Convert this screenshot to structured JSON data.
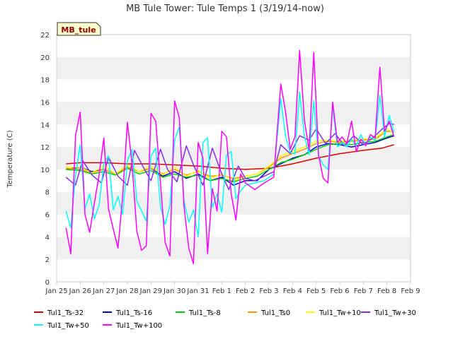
{
  "chart_data": {
    "type": "line",
    "title": "MB Tule Tower: Tule Temps 1 (3/19/14-now)",
    "xlabel": "",
    "ylabel": "Temperature (C)",
    "xlim": [
      0,
      15
    ],
    "ylim": [
      0,
      22
    ],
    "yticks": [
      0,
      2,
      4,
      6,
      8,
      10,
      12,
      14,
      16,
      18,
      20,
      22
    ],
    "xtick_labels": [
      "Jan 25",
      "Jan 26",
      "Jan 27",
      "Jan 28",
      "Jan 29",
      "Jan 30",
      "Jan 31",
      "Feb 1",
      "Feb 2",
      "Feb 3",
      "Feb 4",
      "Feb 5",
      "Feb 6",
      "Feb 7",
      "Feb 8",
      "Feb 9"
    ],
    "x_unit": "days since Jan 25",
    "grid": "horizontal bands",
    "badge": "MB_tule",
    "legend_position": "bottom",
    "series": [
      {
        "name": "Tul1_Ts-32",
        "color": "#dd0000",
        "x": [
          0.4,
          1,
          2,
          3,
          4,
          5,
          6,
          7,
          8,
          9,
          10,
          11,
          12,
          13,
          13.8,
          14.3
        ],
        "y": [
          10.5,
          10.6,
          10.6,
          10.5,
          10.5,
          10.4,
          10.3,
          10.1,
          10.0,
          10.1,
          10.5,
          11.0,
          11.4,
          11.7,
          11.9,
          12.2
        ]
      },
      {
        "name": "Tul1_Ts-16",
        "color": "#0000cc",
        "x": [
          0.4,
          1,
          1.5,
          2,
          2.5,
          3,
          3.5,
          4,
          4.5,
          5,
          5.5,
          6,
          6.5,
          7,
          7.5,
          8,
          8.5,
          9,
          9.5,
          10,
          10.5,
          11,
          11.5,
          12,
          12.5,
          13,
          13.5,
          14,
          14.3
        ],
        "y": [
          10.0,
          10.2,
          9.8,
          10.0,
          9.6,
          10.2,
          9.8,
          10.1,
          9.4,
          9.8,
          9.2,
          9.6,
          9.0,
          9.3,
          8.6,
          9.0,
          9.0,
          10.0,
          10.5,
          11.0,
          11.3,
          12.0,
          12.3,
          12.2,
          12.0,
          12.2,
          12.4,
          12.8,
          13.0
        ]
      },
      {
        "name": "Tul1_Ts-8",
        "color": "#00cc00",
        "x": [
          0.4,
          1,
          1.5,
          2,
          2.5,
          3,
          3.5,
          4,
          4.5,
          5,
          5.5,
          6,
          6.5,
          7,
          7.5,
          8,
          8.5,
          9,
          9.5,
          10,
          10.5,
          11,
          11.5,
          12,
          12.5,
          13,
          13.5,
          14,
          14.3
        ],
        "y": [
          10.0,
          9.9,
          9.6,
          9.8,
          9.5,
          10.1,
          9.6,
          9.9,
          9.3,
          9.6,
          9.3,
          9.5,
          9.0,
          9.2,
          8.9,
          9.2,
          9.4,
          10.0,
          10.6,
          10.9,
          11.3,
          11.8,
          12.2,
          12.3,
          12.2,
          12.4,
          12.5,
          12.9,
          13.1
        ]
      },
      {
        "name": "Tul1_Ts0",
        "color": "#ff9900",
        "x": [
          0.4,
          1,
          1.5,
          2,
          2.5,
          3,
          3.5,
          4,
          4.5,
          5,
          5.5,
          6,
          6.5,
          7,
          7.5,
          8,
          8.5,
          9,
          9.5,
          10,
          10.5,
          11,
          11.5,
          12,
          12.5,
          13,
          13.5,
          14,
          14.3
        ],
        "y": [
          10.1,
          10.0,
          9.7,
          10.0,
          9.6,
          10.2,
          9.8,
          10.1,
          9.6,
          10.0,
          9.5,
          9.8,
          9.4,
          9.5,
          9.2,
          9.4,
          9.6,
          10.2,
          11.0,
          11.4,
          11.8,
          12.3,
          12.5,
          12.4,
          12.5,
          12.6,
          12.7,
          13.4,
          13.3
        ]
      },
      {
        "name": "Tul1_Tw+10",
        "color": "#ffff00",
        "x": [
          0.4,
          1,
          1.5,
          2,
          2.5,
          3,
          3.5,
          4,
          4.5,
          5,
          5.5,
          6,
          6.5,
          7,
          7.5,
          8,
          8.5,
          9,
          9.5,
          10,
          10.5,
          11,
          11.5,
          12,
          12.5,
          13,
          13.5,
          14,
          14.3
        ],
        "y": [
          10.2,
          10.2,
          9.7,
          10.3,
          9.6,
          10.4,
          9.8,
          10.3,
          9.5,
          10.2,
          9.4,
          9.9,
          9.2,
          9.6,
          9.0,
          9.4,
          9.6,
          10.3,
          11.2,
          11.6,
          12.0,
          12.5,
          12.6,
          12.5,
          12.6,
          12.7,
          12.8,
          13.6,
          13.2
        ]
      },
      {
        "name": "Tul1_Tw+30",
        "color": "#8a2be2",
        "x": [
          0.4,
          0.8,
          1.1,
          1.5,
          1.9,
          2.2,
          2.6,
          3.0,
          3.3,
          3.7,
          4.0,
          4.4,
          4.7,
          5.1,
          5.5,
          5.8,
          6.2,
          6.6,
          7.0,
          7.3,
          7.7,
          8.0,
          8.4,
          8.8,
          9.2,
          9.5,
          9.9,
          10.3,
          10.7,
          11.0,
          11.4,
          11.8,
          12.2,
          12.6,
          13.0,
          13.4,
          13.8,
          14.1,
          14.3
        ],
        "y": [
          9.3,
          8.6,
          10.8,
          9.5,
          8.8,
          11.1,
          9.4,
          8.6,
          11.7,
          10.1,
          9.0,
          11.8,
          10.0,
          8.9,
          12.1,
          10.4,
          8.6,
          11.9,
          9.6,
          8.2,
          10.3,
          9.2,
          9.0,
          9.4,
          9.8,
          12.2,
          11.4,
          13.0,
          12.6,
          13.6,
          12.3,
          13.2,
          12.1,
          13.0,
          12.2,
          12.8,
          13.6,
          14.1,
          14.0
        ]
      },
      {
        "name": "Tul1_Tw+50",
        "color": "#00ffff",
        "x": [
          0.4,
          0.6,
          0.8,
          1.0,
          1.2,
          1.4,
          1.6,
          1.8,
          2.0,
          2.2,
          2.4,
          2.6,
          2.8,
          3.0,
          3.2,
          3.4,
          3.6,
          3.8,
          4.0,
          4.2,
          4.4,
          4.6,
          4.8,
          5.0,
          5.2,
          5.4,
          5.6,
          5.8,
          6.0,
          6.2,
          6.4,
          6.6,
          6.8,
          7.0,
          7.2,
          7.4,
          7.6,
          7.8,
          8.0,
          8.4,
          8.8,
          9.2,
          9.5,
          9.7,
          9.9,
          10.1,
          10.3,
          10.5,
          10.7,
          10.9,
          11.1,
          11.3,
          11.5,
          11.7,
          11.9,
          12.1,
          12.3,
          12.5,
          12.7,
          12.9,
          13.1,
          13.3,
          13.5,
          13.7,
          13.9,
          14.1,
          14.3
        ],
        "y": [
          6.3,
          4.8,
          9.5,
          12.2,
          6.5,
          7.8,
          5.6,
          6.8,
          10.6,
          11.2,
          6.4,
          7.6,
          6.0,
          10.8,
          11.8,
          7.2,
          6.3,
          5.4,
          11.2,
          11.9,
          6.7,
          5.1,
          6.8,
          12.6,
          13.8,
          7.2,
          5.3,
          6.4,
          4.0,
          12.4,
          12.8,
          6.6,
          7.8,
          6.2,
          11.3,
          11.6,
          7.4,
          8.1,
          8.6,
          8.8,
          9.0,
          9.6,
          16.3,
          13.0,
          11.5,
          11.4,
          16.9,
          13.0,
          11.3,
          16.1,
          11.2,
          10.4,
          10.0,
          15.6,
          12.0,
          12.4,
          12.0,
          12.7,
          12.1,
          13.1,
          12.1,
          12.9,
          12.6,
          16.6,
          12.9,
          14.8,
          13.3
        ]
      },
      {
        "name": "Tul1_Tw+100",
        "color": "#ff00ff",
        "x": [
          0.4,
          0.6,
          0.8,
          1.0,
          1.2,
          1.4,
          1.6,
          1.8,
          2.0,
          2.2,
          2.4,
          2.6,
          2.8,
          3.0,
          3.2,
          3.4,
          3.6,
          3.8,
          4.0,
          4.2,
          4.4,
          4.6,
          4.8,
          5.0,
          5.2,
          5.4,
          5.6,
          5.8,
          6.0,
          6.2,
          6.4,
          6.6,
          6.8,
          7.0,
          7.2,
          7.4,
          7.6,
          7.8,
          8.0,
          8.4,
          8.8,
          9.2,
          9.5,
          9.7,
          9.9,
          10.1,
          10.3,
          10.5,
          10.7,
          10.9,
          11.1,
          11.3,
          11.5,
          11.7,
          11.9,
          12.1,
          12.3,
          12.5,
          12.7,
          12.9,
          13.1,
          13.3,
          13.5,
          13.7,
          13.9,
          14.1,
          14.3
        ],
        "y": [
          4.8,
          2.5,
          13.0,
          15.1,
          6.0,
          4.4,
          7.0,
          9.5,
          12.8,
          6.5,
          4.7,
          3.0,
          7.6,
          14.2,
          10.4,
          4.5,
          2.8,
          3.2,
          15.0,
          14.3,
          8.8,
          3.5,
          2.3,
          16.1,
          14.6,
          6.7,
          3.0,
          1.6,
          12.4,
          11.0,
          2.5,
          8.3,
          6.3,
          13.4,
          12.9,
          7.8,
          5.5,
          9.6,
          8.8,
          8.2,
          8.8,
          9.3,
          17.6,
          15.2,
          11.8,
          12.9,
          20.6,
          14.4,
          11.7,
          20.4,
          11.3,
          9.2,
          8.8,
          16.0,
          12.4,
          12.9,
          12.3,
          14.3,
          11.6,
          12.7,
          12.1,
          13.1,
          12.8,
          19.1,
          13.4,
          14.3,
          12.9
        ]
      }
    ]
  }
}
